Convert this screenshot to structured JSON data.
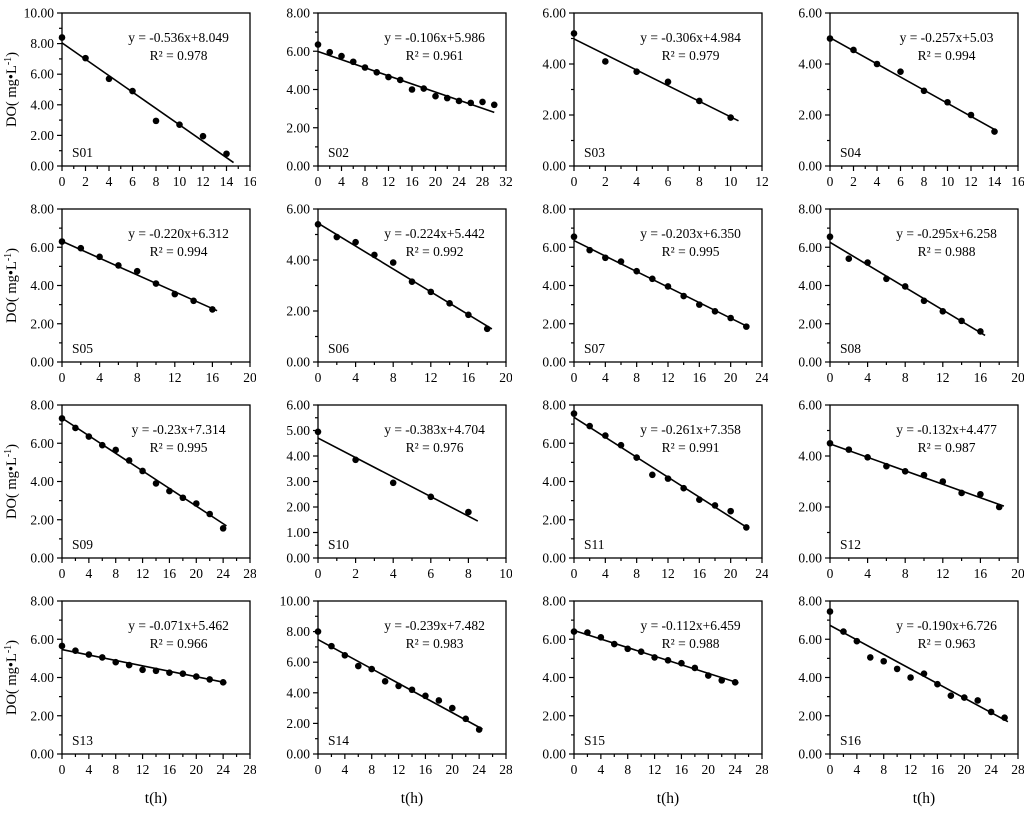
{
  "figure": {
    "xlabel": "t(h)",
    "ylabel_pre": "DO( mg•L",
    "ylabel_sup": "-1",
    "ylabel_post": ")",
    "point_color": "#000000",
    "line_color": "#000000",
    "background": "#ffffff"
  },
  "chart_data": {
    "type": "scatter",
    "layout": "4x4-grid",
    "xlabel": "t(h)",
    "ylabel": "DO( mg•L-1)",
    "legend": "none",
    "grid": "off",
    "panels": [
      {
        "station": "S01",
        "equation": "y = -0.536x+8.049",
        "r2_label": "R² = 0.978",
        "slope": -0.536,
        "intercept": 8.049,
        "xlim": [
          0,
          16
        ],
        "xtick_step": 2,
        "ylim": [
          0,
          10
        ],
        "ytick_step": 2,
        "line_x_range": [
          0,
          14.6
        ],
        "x": [
          0,
          2,
          4,
          6,
          8,
          10,
          12,
          14
        ],
        "y": [
          8.4,
          7.05,
          5.7,
          4.9,
          2.95,
          2.7,
          1.95,
          0.8
        ]
      },
      {
        "station": "S02",
        "equation": "y = -0.106x+5.986",
        "r2_label": "R² = 0.961",
        "slope": -0.106,
        "intercept": 5.986,
        "xlim": [
          0,
          32
        ],
        "xtick_step": 4,
        "ylim": [
          0,
          8
        ],
        "ytick_step": 2,
        "line_x_range": [
          0,
          30
        ],
        "x": [
          0,
          2,
          4,
          6,
          8,
          10,
          12,
          14,
          16,
          18,
          20,
          22,
          24,
          26,
          28,
          30
        ],
        "y": [
          6.35,
          5.95,
          5.75,
          5.45,
          5.15,
          4.9,
          4.65,
          4.5,
          4.0,
          4.05,
          3.65,
          3.55,
          3.4,
          3.3,
          3.35,
          3.2
        ]
      },
      {
        "station": "S03",
        "equation": "y = -0.306x+4.984",
        "r2_label": "R² = 0.979",
        "slope": -0.306,
        "intercept": 4.984,
        "xlim": [
          0,
          12
        ],
        "xtick_step": 2,
        "ylim": [
          0,
          6
        ],
        "ytick_step": 2,
        "line_x_range": [
          0,
          10.5
        ],
        "x": [
          0,
          2,
          4,
          6,
          8,
          10
        ],
        "y": [
          5.2,
          4.1,
          3.7,
          3.3,
          2.55,
          1.9
        ]
      },
      {
        "station": "S04",
        "equation": "y = -0.257x+5.03",
        "r2_label": "R² = 0.994",
        "slope": -0.257,
        "intercept": 5.03,
        "xlim": [
          0,
          16
        ],
        "xtick_step": 2,
        "ylim": [
          0,
          6
        ],
        "ytick_step": 2,
        "line_x_range": [
          0,
          14
        ],
        "x": [
          0,
          2,
          4,
          6,
          8,
          10,
          12,
          14
        ],
        "y": [
          5.0,
          4.55,
          4.0,
          3.7,
          2.95,
          2.5,
          2.0,
          1.35
        ]
      },
      {
        "station": "S05",
        "equation": "y = -0.220x+6.312",
        "r2_label": "R² = 0.994",
        "slope": -0.22,
        "intercept": 6.312,
        "xlim": [
          0,
          20
        ],
        "xtick_step": 4,
        "ylim": [
          0,
          8
        ],
        "ytick_step": 2,
        "line_x_range": [
          0,
          16.5
        ],
        "x": [
          0,
          2,
          4,
          6,
          8,
          10,
          12,
          14,
          16
        ],
        "y": [
          6.3,
          5.95,
          5.5,
          5.05,
          4.75,
          4.1,
          3.55,
          3.2,
          2.75
        ]
      },
      {
        "station": "S06",
        "equation": "y = -0.224x+5.442",
        "r2_label": "R² = 0.992",
        "slope": -0.224,
        "intercept": 5.442,
        "xlim": [
          0,
          20
        ],
        "xtick_step": 4,
        "ylim": [
          0,
          6
        ],
        "ytick_step": 2,
        "line_x_range": [
          0,
          18.5
        ],
        "x": [
          0,
          2,
          4,
          6,
          8,
          10,
          12,
          14,
          16,
          18
        ],
        "y": [
          5.4,
          4.9,
          4.7,
          4.2,
          3.9,
          3.15,
          2.75,
          2.3,
          1.85,
          1.3
        ]
      },
      {
        "station": "S07",
        "equation": "y = -0.203x+6.350",
        "r2_label": "R² = 0.995",
        "slope": -0.203,
        "intercept": 6.35,
        "xlim": [
          0,
          24
        ],
        "xtick_step": 4,
        "ylim": [
          0,
          8
        ],
        "ytick_step": 2,
        "line_x_range": [
          0,
          22
        ],
        "x": [
          0,
          2,
          4,
          6,
          8,
          10,
          12,
          14,
          16,
          18,
          20,
          22
        ],
        "y": [
          6.55,
          5.85,
          5.45,
          5.25,
          4.75,
          4.35,
          3.95,
          3.45,
          3.0,
          2.65,
          2.3,
          1.85
        ]
      },
      {
        "station": "S08",
        "equation": "y = -0.295x+6.258",
        "r2_label": "R² = 0.988",
        "slope": -0.295,
        "intercept": 6.258,
        "xlim": [
          0,
          20
        ],
        "xtick_step": 4,
        "ylim": [
          0,
          8
        ],
        "ytick_step": 2,
        "line_x_range": [
          0,
          16.5
        ],
        "x": [
          0,
          2,
          4,
          6,
          8,
          10,
          12,
          14,
          16
        ],
        "y": [
          6.55,
          5.4,
          5.2,
          4.35,
          3.95,
          3.2,
          2.65,
          2.15,
          1.6
        ]
      },
      {
        "station": "S09",
        "equation": "y = -0.23x+7.314",
        "r2_label": "R² = 0.995",
        "slope": -0.23,
        "intercept": 7.314,
        "xlim": [
          0,
          28
        ],
        "xtick_step": 4,
        "ylim": [
          0,
          8
        ],
        "ytick_step": 2,
        "line_x_range": [
          0,
          24.5
        ],
        "x": [
          0,
          2,
          4,
          6,
          8,
          10,
          12,
          14,
          16,
          18,
          20,
          22,
          24
        ],
        "y": [
          7.3,
          6.8,
          6.35,
          5.9,
          5.65,
          5.1,
          4.55,
          3.9,
          3.5,
          3.15,
          2.85,
          2.3,
          1.55
        ]
      },
      {
        "station": "S10",
        "equation": "y = -0.383x+4.704",
        "r2_label": "R² = 0.976",
        "slope": -0.383,
        "intercept": 4.704,
        "xlim": [
          0,
          10
        ],
        "xtick_step": 2,
        "ylim": [
          0,
          6
        ],
        "ytick_step": 1,
        "line_x_range": [
          0,
          8.5
        ],
        "x": [
          0,
          2,
          4,
          6,
          8
        ],
        "y": [
          4.95,
          3.85,
          2.95,
          2.4,
          1.8
        ]
      },
      {
        "station": "S11",
        "equation": "y = -0.261x+7.358",
        "r2_label": "R² = 0.991",
        "slope": -0.261,
        "intercept": 7.358,
        "xlim": [
          0,
          24
        ],
        "xtick_step": 4,
        "ylim": [
          0,
          8
        ],
        "ytick_step": 2,
        "line_x_range": [
          0,
          22
        ],
        "x": [
          0,
          2,
          4,
          6,
          8,
          10,
          12,
          14,
          16,
          18,
          20,
          22
        ],
        "y": [
          7.55,
          6.9,
          6.4,
          5.9,
          5.25,
          4.35,
          4.15,
          3.65,
          3.05,
          2.75,
          2.45,
          1.6
        ]
      },
      {
        "station": "S12",
        "equation": "y = -0.132x+4.477",
        "r2_label": "R² = 0.987",
        "slope": -0.132,
        "intercept": 4.477,
        "xlim": [
          0,
          20
        ],
        "xtick_step": 4,
        "ylim": [
          0,
          6
        ],
        "ytick_step": 2,
        "line_x_range": [
          0,
          18.5
        ],
        "x": [
          0,
          2,
          4,
          6,
          8,
          10,
          12,
          14,
          16,
          18
        ],
        "y": [
          4.5,
          4.25,
          3.95,
          3.6,
          3.4,
          3.25,
          3.0,
          2.55,
          2.5,
          2.0
        ]
      },
      {
        "station": "S13",
        "equation": "y = -0.071x+5.462",
        "r2_label": "R² = 0.966",
        "slope": -0.071,
        "intercept": 5.462,
        "xlim": [
          0,
          28
        ],
        "xtick_step": 4,
        "ylim": [
          0,
          8
        ],
        "ytick_step": 2,
        "line_x_range": [
          0,
          24.5
        ],
        "x": [
          0,
          2,
          4,
          6,
          8,
          10,
          12,
          14,
          16,
          18,
          20,
          22,
          24
        ],
        "y": [
          5.65,
          5.4,
          5.2,
          5.05,
          4.8,
          4.65,
          4.4,
          4.35,
          4.25,
          4.2,
          4.05,
          3.9,
          3.75
        ]
      },
      {
        "station": "S14",
        "equation": "y = -0.239x+7.482",
        "r2_label": "R² = 0.983",
        "slope": -0.239,
        "intercept": 7.482,
        "xlim": [
          0,
          28
        ],
        "xtick_step": 4,
        "ylim": [
          0,
          10
        ],
        "ytick_step": 2,
        "line_x_range": [
          0,
          24.5
        ],
        "x": [
          0,
          2,
          4,
          6,
          8,
          10,
          12,
          14,
          16,
          18,
          20,
          22,
          24
        ],
        "y": [
          8.0,
          7.05,
          6.45,
          5.75,
          5.55,
          4.75,
          4.45,
          4.2,
          3.8,
          3.5,
          3.0,
          2.3,
          1.6
        ]
      },
      {
        "station": "S15",
        "equation": "y = -0.112x+6.459",
        "r2_label": "R² = 0.988",
        "slope": -0.112,
        "intercept": 6.459,
        "xlim": [
          0,
          28
        ],
        "xtick_step": 4,
        "ylim": [
          0,
          8
        ],
        "ytick_step": 2,
        "line_x_range": [
          0,
          24.5
        ],
        "x": [
          0,
          2,
          4,
          6,
          8,
          10,
          12,
          14,
          16,
          18,
          20,
          22,
          24
        ],
        "y": [
          6.4,
          6.35,
          6.1,
          5.75,
          5.5,
          5.35,
          5.05,
          4.9,
          4.75,
          4.5,
          4.1,
          3.85,
          3.75
        ]
      },
      {
        "station": "S16",
        "equation": "y = -0.190x+6.726",
        "r2_label": "R² = 0.963",
        "slope": -0.19,
        "intercept": 6.726,
        "xlim": [
          0,
          28
        ],
        "xtick_step": 4,
        "ylim": [
          0,
          8
        ],
        "ytick_step": 2,
        "line_x_range": [
          0,
          26.5
        ],
        "x": [
          0,
          2,
          4,
          6,
          8,
          10,
          12,
          14,
          16,
          18,
          20,
          22,
          24,
          26
        ],
        "y": [
          7.45,
          6.4,
          5.9,
          5.05,
          4.85,
          4.45,
          4.0,
          4.2,
          3.65,
          3.05,
          2.95,
          2.8,
          2.2,
          1.9
        ]
      }
    ]
  }
}
